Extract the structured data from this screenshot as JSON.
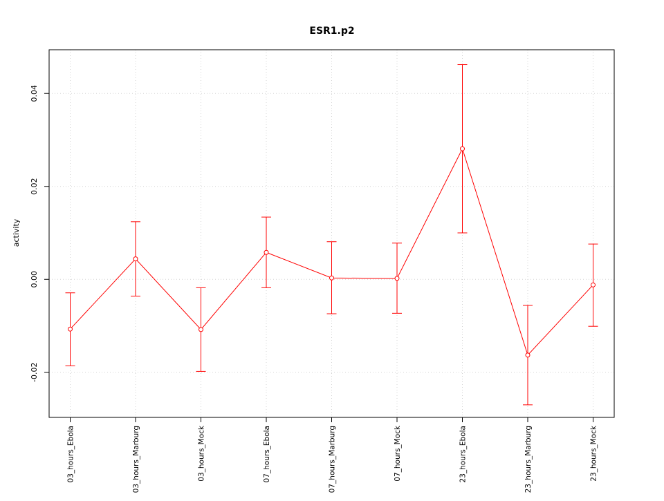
{
  "chart_data": {
    "type": "line",
    "title": "ESR1.p2",
    "xlabel": "",
    "ylabel": "activity",
    "categories": [
      "03_hours_Ebola",
      "03_hours_Marburg",
      "03_hours_Mock",
      "07_hours_Ebola",
      "07_hours_Marburg",
      "07_hours_Mock",
      "23_hours_Ebola",
      "23_hours_Marburg",
      "23_hours_Mock"
    ],
    "values": [
      -0.0107,
      0.0044,
      -0.0108,
      0.0058,
      0.0003,
      0.0002,
      0.0281,
      -0.0163,
      -0.0012
    ],
    "error_lower": [
      -0.0186,
      -0.0036,
      -0.0198,
      -0.0018,
      -0.0074,
      -0.0073,
      0.01,
      -0.027,
      -0.0101
    ],
    "error_upper": [
      -0.0029,
      0.0124,
      -0.0018,
      0.0134,
      0.0081,
      0.0078,
      0.0462,
      -0.0056,
      0.0076
    ],
    "yticks": [
      -0.02,
      0.0,
      0.02,
      0.04
    ],
    "ytick_labels": [
      "-0.02",
      "0.00",
      "0.02",
      "0.04"
    ],
    "ylim": [
      -0.0297,
      0.0494
    ],
    "grid": true,
    "colors": {
      "series": "#ff0000",
      "grid": "#d3d3d3",
      "axes": "#000000"
    }
  }
}
